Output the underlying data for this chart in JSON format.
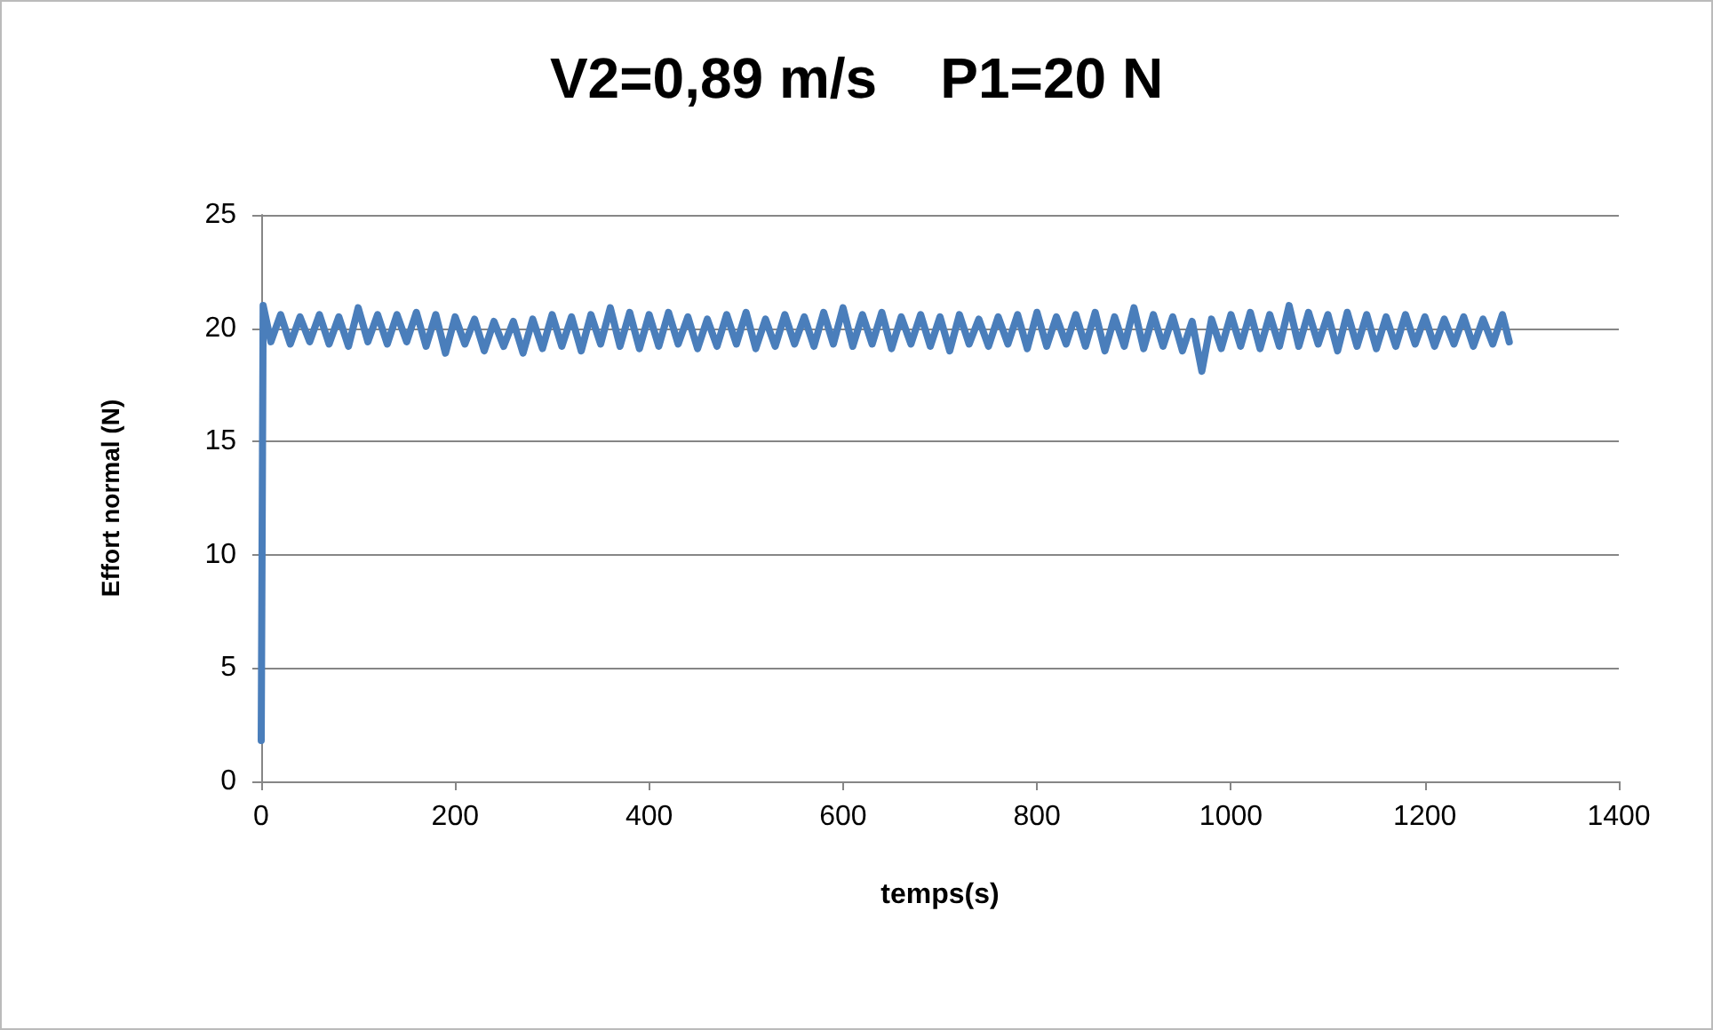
{
  "chart_data": {
    "type": "line",
    "title": "V2=0,89 m/s    P1=20 N",
    "xlabel": "temps(s)",
    "ylabel": "Effort normal (N)",
    "xlim": [
      0,
      1400
    ],
    "xticks": [
      0,
      200,
      400,
      600,
      800,
      1000,
      1200,
      1400
    ],
    "ylim": [
      0,
      25
    ],
    "yticks": [
      0,
      5,
      10,
      15,
      20,
      25
    ],
    "grid": "y",
    "marker": "none",
    "line_style": "solid",
    "series": [
      {
        "color": "#4a7ebb",
        "x": [
          0,
          2,
          10,
          20,
          30,
          40,
          50,
          60,
          70,
          80,
          90,
          100,
          110,
          120,
          130,
          140,
          150,
          160,
          170,
          180,
          190,
          200,
          210,
          220,
          230,
          240,
          250,
          260,
          270,
          280,
          290,
          300,
          310,
          320,
          330,
          340,
          350,
          360,
          370,
          380,
          390,
          400,
          410,
          420,
          430,
          440,
          450,
          460,
          470,
          480,
          490,
          500,
          510,
          520,
          530,
          540,
          550,
          560,
          570,
          580,
          590,
          600,
          610,
          620,
          630,
          640,
          650,
          660,
          670,
          680,
          690,
          700,
          710,
          720,
          730,
          740,
          750,
          760,
          770,
          780,
          790,
          800,
          810,
          820,
          830,
          840,
          850,
          860,
          870,
          880,
          890,
          900,
          910,
          920,
          930,
          940,
          950,
          960,
          970,
          980,
          990,
          1000,
          1010,
          1020,
          1030,
          1040,
          1050,
          1060,
          1070,
          1080,
          1090,
          1100,
          1110,
          1120,
          1130,
          1140,
          1150,
          1160,
          1170,
          1180,
          1190,
          1200,
          1210,
          1220,
          1230,
          1240,
          1250,
          1260,
          1270,
          1280,
          1287
        ],
        "values": [
          1.8,
          21.0,
          19.4,
          20.6,
          19.3,
          20.5,
          19.4,
          20.6,
          19.3,
          20.5,
          19.2,
          20.9,
          19.4,
          20.6,
          19.3,
          20.6,
          19.4,
          20.7,
          19.2,
          20.6,
          18.9,
          20.5,
          19.3,
          20.4,
          19.0,
          20.3,
          19.2,
          20.3,
          18.9,
          20.4,
          19.1,
          20.6,
          19.2,
          20.5,
          19.0,
          20.6,
          19.3,
          20.9,
          19.2,
          20.7,
          19.1,
          20.6,
          19.2,
          20.7,
          19.3,
          20.5,
          19.1,
          20.4,
          19.2,
          20.6,
          19.3,
          20.7,
          19.1,
          20.4,
          19.2,
          20.6,
          19.3,
          20.5,
          19.2,
          20.7,
          19.3,
          20.9,
          19.2,
          20.6,
          19.3,
          20.7,
          19.1,
          20.5,
          19.3,
          20.6,
          19.2,
          20.5,
          19.0,
          20.6,
          19.3,
          20.4,
          19.2,
          20.5,
          19.3,
          20.6,
          19.1,
          20.7,
          19.2,
          20.5,
          19.3,
          20.6,
          19.2,
          20.7,
          19.0,
          20.5,
          19.2,
          20.9,
          19.1,
          20.6,
          19.2,
          20.5,
          19.0,
          20.3,
          18.1,
          20.4,
          19.1,
          20.6,
          19.2,
          20.7,
          19.1,
          20.6,
          19.2,
          21.0,
          19.2,
          20.7,
          19.3,
          20.6,
          19.0,
          20.7,
          19.2,
          20.6,
          19.1,
          20.5,
          19.2,
          20.6,
          19.3,
          20.5,
          19.2,
          20.4,
          19.3,
          20.5,
          19.2,
          20.4,
          19.3,
          20.6,
          19.4
        ]
      }
    ]
  }
}
